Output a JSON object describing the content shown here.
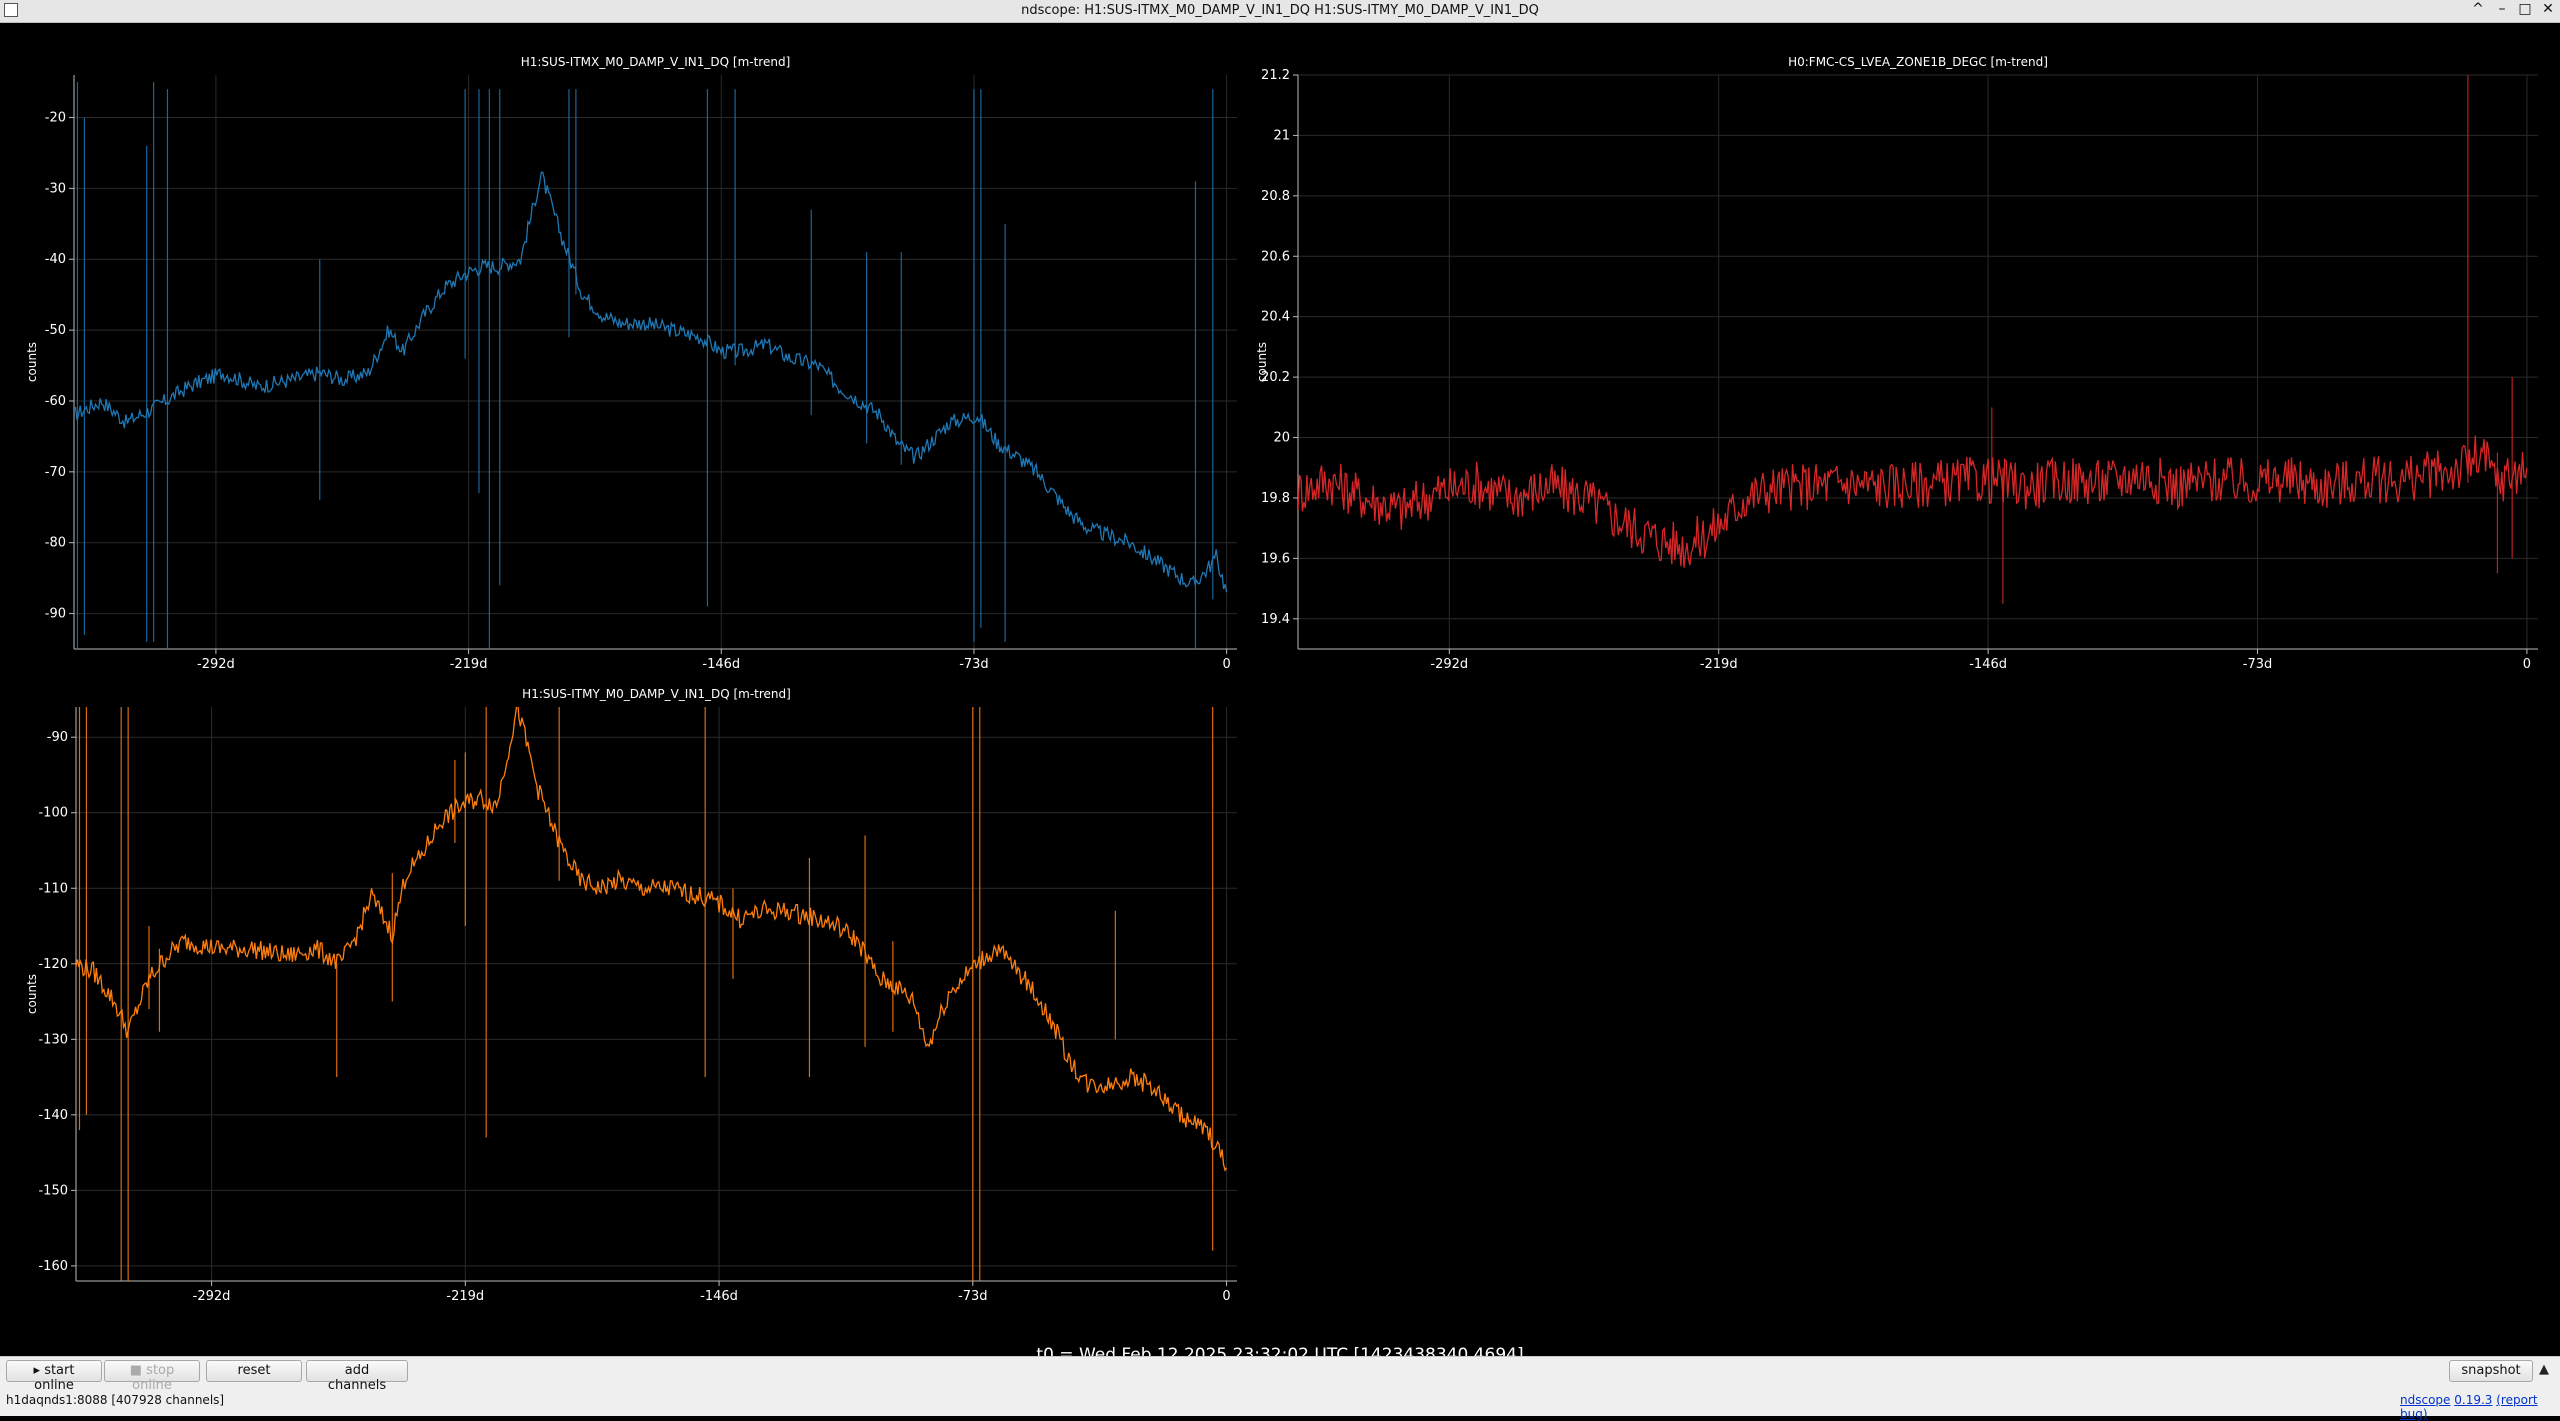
{
  "window": {
    "title": "ndscope: H1:SUS-ITMX_M0_DAMP_V_IN1_DQ H1:SUS-ITMY_M0_DAMP_V_IN1_DQ",
    "controls": [
      "^",
      "–",
      "□",
      "✕"
    ]
  },
  "plots": [
    {
      "title": "H1:SUS-ITMX_M0_DAMP_V_IN1_DQ [m-trend]",
      "ylabel": "counts",
      "color": "#1f77b4"
    },
    {
      "title": "H0:FMC-CS_LVEA_ZONE1B_DEGC [m-trend]",
      "ylabel": "counts",
      "color": "#d62728"
    },
    {
      "title": "H1:SUS-ITMY_M0_DAMP_V_IN1_DQ [m-trend]",
      "ylabel": "counts",
      "color": "#ff7f0e"
    }
  ],
  "chart_data": [
    {
      "type": "line",
      "title": "H1:SUS-ITMX_M0_DAMP_V_IN1_DQ [m-trend]",
      "ylabel": "counts",
      "x_tick_labels": [
        "-292d",
        "-219d",
        "-146d",
        "-73d",
        "0"
      ],
      "x_ticks": [
        -292,
        -219,
        -146,
        -73,
        0
      ],
      "xlim": [
        -333,
        3
      ],
      "y_ticks": [
        -20,
        -30,
        -40,
        -50,
        -60,
        -70,
        -80,
        -90
      ],
      "ylim": [
        -95,
        -14
      ],
      "series": [
        {
          "color": "#1f77b4",
          "x": [
            -333,
            -325,
            -318,
            -310,
            -300,
            -290,
            -280,
            -270,
            -262,
            -255,
            -248,
            -242,
            -238,
            -232,
            -226,
            -220,
            -215,
            -210,
            -204,
            -198,
            -192,
            -186,
            -180,
            -175,
            -168,
            -160,
            -152,
            -146,
            -140,
            -133,
            -126,
            -118,
            -112,
            -106,
            -100,
            -95,
            -90,
            -86,
            -80,
            -72,
            -66,
            -60,
            -55,
            -50,
            -45,
            -40,
            -34,
            -28,
            -22,
            -16,
            -10,
            -6,
            -3,
            0
          ],
          "y": [
            -62,
            -60,
            -63,
            -61,
            -58,
            -56,
            -58,
            -57,
            -56,
            -57,
            -56,
            -50,
            -53,
            -48,
            -44,
            -42,
            -41,
            -41,
            -40,
            -28,
            -37,
            -45,
            -48,
            -49,
            -49,
            -50,
            -51,
            -53,
            -53,
            -52,
            -54,
            -55,
            -58,
            -60,
            -62,
            -66,
            -68,
            -66,
            -63,
            -62,
            -66,
            -68,
            -70,
            -73,
            -76,
            -78,
            -79,
            -80,
            -82,
            -84,
            -86,
            -84,
            -82,
            -87
          ]
        }
      ],
      "spikes": [
        {
          "x": -332,
          "y1": -15,
          "y2": -95
        },
        {
          "x": -330,
          "y1": -20,
          "y2": -93
        },
        {
          "x": -312,
          "y1": -24,
          "y2": -94
        },
        {
          "x": -310,
          "y1": -15,
          "y2": -94
        },
        {
          "x": -306,
          "y1": -16,
          "y2": -95
        },
        {
          "x": -262,
          "y1": -40,
          "y2": -74
        },
        {
          "x": -220,
          "y1": -16,
          "y2": -54
        },
        {
          "x": -216,
          "y1": -16,
          "y2": -73
        },
        {
          "x": -213,
          "y1": -16,
          "y2": -95
        },
        {
          "x": -210,
          "y1": -16,
          "y2": -86
        },
        {
          "x": -190,
          "y1": -16,
          "y2": -51
        },
        {
          "x": -188,
          "y1": -16,
          "y2": -45
        },
        {
          "x": -150,
          "y1": -16,
          "y2": -89
        },
        {
          "x": -142,
          "y1": -16,
          "y2": -55
        },
        {
          "x": -120,
          "y1": -33,
          "y2": -62
        },
        {
          "x": -104,
          "y1": -39,
          "y2": -66
        },
        {
          "x": -94,
          "y1": -39,
          "y2": -69
        },
        {
          "x": -73,
          "y1": -16,
          "y2": -94
        },
        {
          "x": -71,
          "y1": -16,
          "y2": -92
        },
        {
          "x": -64,
          "y1": -35,
          "y2": -94
        },
        {
          "x": -9,
          "y1": -29,
          "y2": -95
        },
        {
          "x": -4,
          "y1": -16,
          "y2": -88
        }
      ]
    },
    {
      "type": "line",
      "title": "H0:FMC-CS_LVEA_ZONE1B_DEGC [m-trend]",
      "ylabel": "counts",
      "x_tick_labels": [
        "-292d",
        "-219d",
        "-146d",
        "-73d",
        "0"
      ],
      "x_ticks": [
        -292,
        -219,
        -146,
        -73,
        0
      ],
      "xlim": [
        -333,
        3
      ],
      "y_ticks": [
        21.2,
        21,
        20.8,
        20.6,
        20.4,
        20.2,
        20,
        19.8,
        19.6,
        19.4
      ],
      "ylim": [
        19.3,
        21.2
      ],
      "series": [
        {
          "color": "#d62728",
          "x": [
            -333,
            -325,
            -315,
            -305,
            -295,
            -285,
            -275,
            -265,
            -255,
            -245,
            -235,
            -228,
            -222,
            -218,
            -212,
            -205,
            -195,
            -185,
            -175,
            -160,
            -146,
            -135,
            -125,
            -115,
            -105,
            -95,
            -85,
            -75,
            -65,
            -55,
            -45,
            -35,
            -25,
            -18,
            -12,
            -8,
            -4,
            0
          ],
          "y": [
            19.82,
            19.86,
            19.8,
            19.76,
            19.82,
            19.85,
            19.8,
            19.84,
            19.8,
            19.72,
            19.66,
            19.64,
            19.68,
            19.72,
            19.8,
            19.83,
            19.84,
            19.85,
            19.84,
            19.85,
            19.86,
            19.84,
            19.86,
            19.85,
            19.88,
            19.84,
            19.86,
            19.85,
            19.86,
            19.84,
            19.86,
            19.86,
            19.88,
            19.9,
            19.94,
            19.85,
            19.88,
            19.9
          ]
        }
      ],
      "spikes": [
        {
          "x": -145,
          "y1": 20.1,
          "y2": 19.8
        },
        {
          "x": -142,
          "y1": 19.9,
          "y2": 19.45
        },
        {
          "x": -16,
          "y1": 21.2,
          "y2": 19.85
        },
        {
          "x": -8,
          "y1": 19.95,
          "y2": 19.55
        },
        {
          "x": -4,
          "y1": 20.2,
          "y2": 19.6
        }
      ]
    },
    {
      "type": "line",
      "title": "H1:SUS-ITMY_M0_DAMP_V_IN1_DQ [m-trend]",
      "ylabel": "counts",
      "x_tick_labels": [
        "-292d",
        "-219d",
        "-146d",
        "-73d",
        "0"
      ],
      "x_ticks": [
        -292,
        -219,
        -146,
        -73,
        0
      ],
      "xlim": [
        -331,
        3
      ],
      "y_ticks": [
        -90,
        -100,
        -110,
        -120,
        -130,
        -140,
        -150,
        -160
      ],
      "ylim": [
        -162,
        -86
      ],
      "series": [
        {
          "color": "#ff7f0e",
          "x": [
            -331,
            -326,
            -320,
            -316,
            -310,
            -305,
            -300,
            -290,
            -280,
            -270,
            -262,
            -255,
            -250,
            -246,
            -240,
            -236,
            -232,
            -226,
            -220,
            -215,
            -210,
            -204,
            -198,
            -192,
            -186,
            -180,
            -175,
            -168,
            -160,
            -152,
            -146,
            -140,
            -133,
            -126,
            -118,
            -112,
            -106,
            -100,
            -95,
            -90,
            -86,
            -80,
            -72,
            -66,
            -60,
            -55,
            -50,
            -45,
            -40,
            -34,
            -28,
            -22,
            -16,
            -10,
            -6,
            -3,
            0
          ],
          "y": [
            -120,
            -121,
            -125,
            -129,
            -122,
            -119,
            -117,
            -118,
            -118,
            -119,
            -118,
            -120,
            -116,
            -111,
            -116,
            -108,
            -106,
            -101,
            -99,
            -98,
            -99,
            -86,
            -97,
            -104,
            -109,
            -110,
            -109,
            -110,
            -110,
            -111,
            -112,
            -114,
            -113,
            -113,
            -114,
            -115,
            -117,
            -122,
            -123,
            -125,
            -131,
            -124,
            -120,
            -118,
            -121,
            -124,
            -128,
            -133,
            -136,
            -136,
            -135,
            -136,
            -139,
            -141,
            -142,
            -144,
            -147
          ]
        }
      ],
      "spikes": [
        {
          "x": -330,
          "y1": -86,
          "y2": -142
        },
        {
          "x": -328,
          "y1": -86,
          "y2": -140
        },
        {
          "x": -318,
          "y1": -86,
          "y2": -162
        },
        {
          "x": -316,
          "y1": -86,
          "y2": -162
        },
        {
          "x": -310,
          "y1": -115,
          "y2": -126
        },
        {
          "x": -307,
          "y1": -118,
          "y2": -129
        },
        {
          "x": -256,
          "y1": -120,
          "y2": -135
        },
        {
          "x": -240,
          "y1": -108,
          "y2": -125
        },
        {
          "x": -222,
          "y1": -93,
          "y2": -104
        },
        {
          "x": -219,
          "y1": -92,
          "y2": -115
        },
        {
          "x": -213,
          "y1": -86,
          "y2": -143
        },
        {
          "x": -192,
          "y1": -86,
          "y2": -109
        },
        {
          "x": -150,
          "y1": -86,
          "y2": -135
        },
        {
          "x": -142,
          "y1": -110,
          "y2": -122
        },
        {
          "x": -120,
          "y1": -106,
          "y2": -135
        },
        {
          "x": -104,
          "y1": -103,
          "y2": -131
        },
        {
          "x": -96,
          "y1": -117,
          "y2": -129
        },
        {
          "x": -73,
          "y1": -86,
          "y2": -162
        },
        {
          "x": -71,
          "y1": -86,
          "y2": -162
        },
        {
          "x": -32,
          "y1": -113,
          "y2": -130
        },
        {
          "x": -4,
          "y1": -86,
          "y2": -158
        }
      ]
    }
  ],
  "t0_label": "t0 = Wed Feb 12 2025 23:32:02 UTC [1423438340.4694]",
  "toolbar": {
    "start_online": "start online",
    "stop_online": "stop online",
    "reset": "reset",
    "add_channels": "add channels",
    "snapshot": "snapshot",
    "expand": "▲"
  },
  "status": {
    "server": "h1daqnds1:8088",
    "channels": "[407928 channels]",
    "ndscope_link": "ndscope",
    "version_link": "0.19.3",
    "report_bug_link": "(report bug)"
  }
}
